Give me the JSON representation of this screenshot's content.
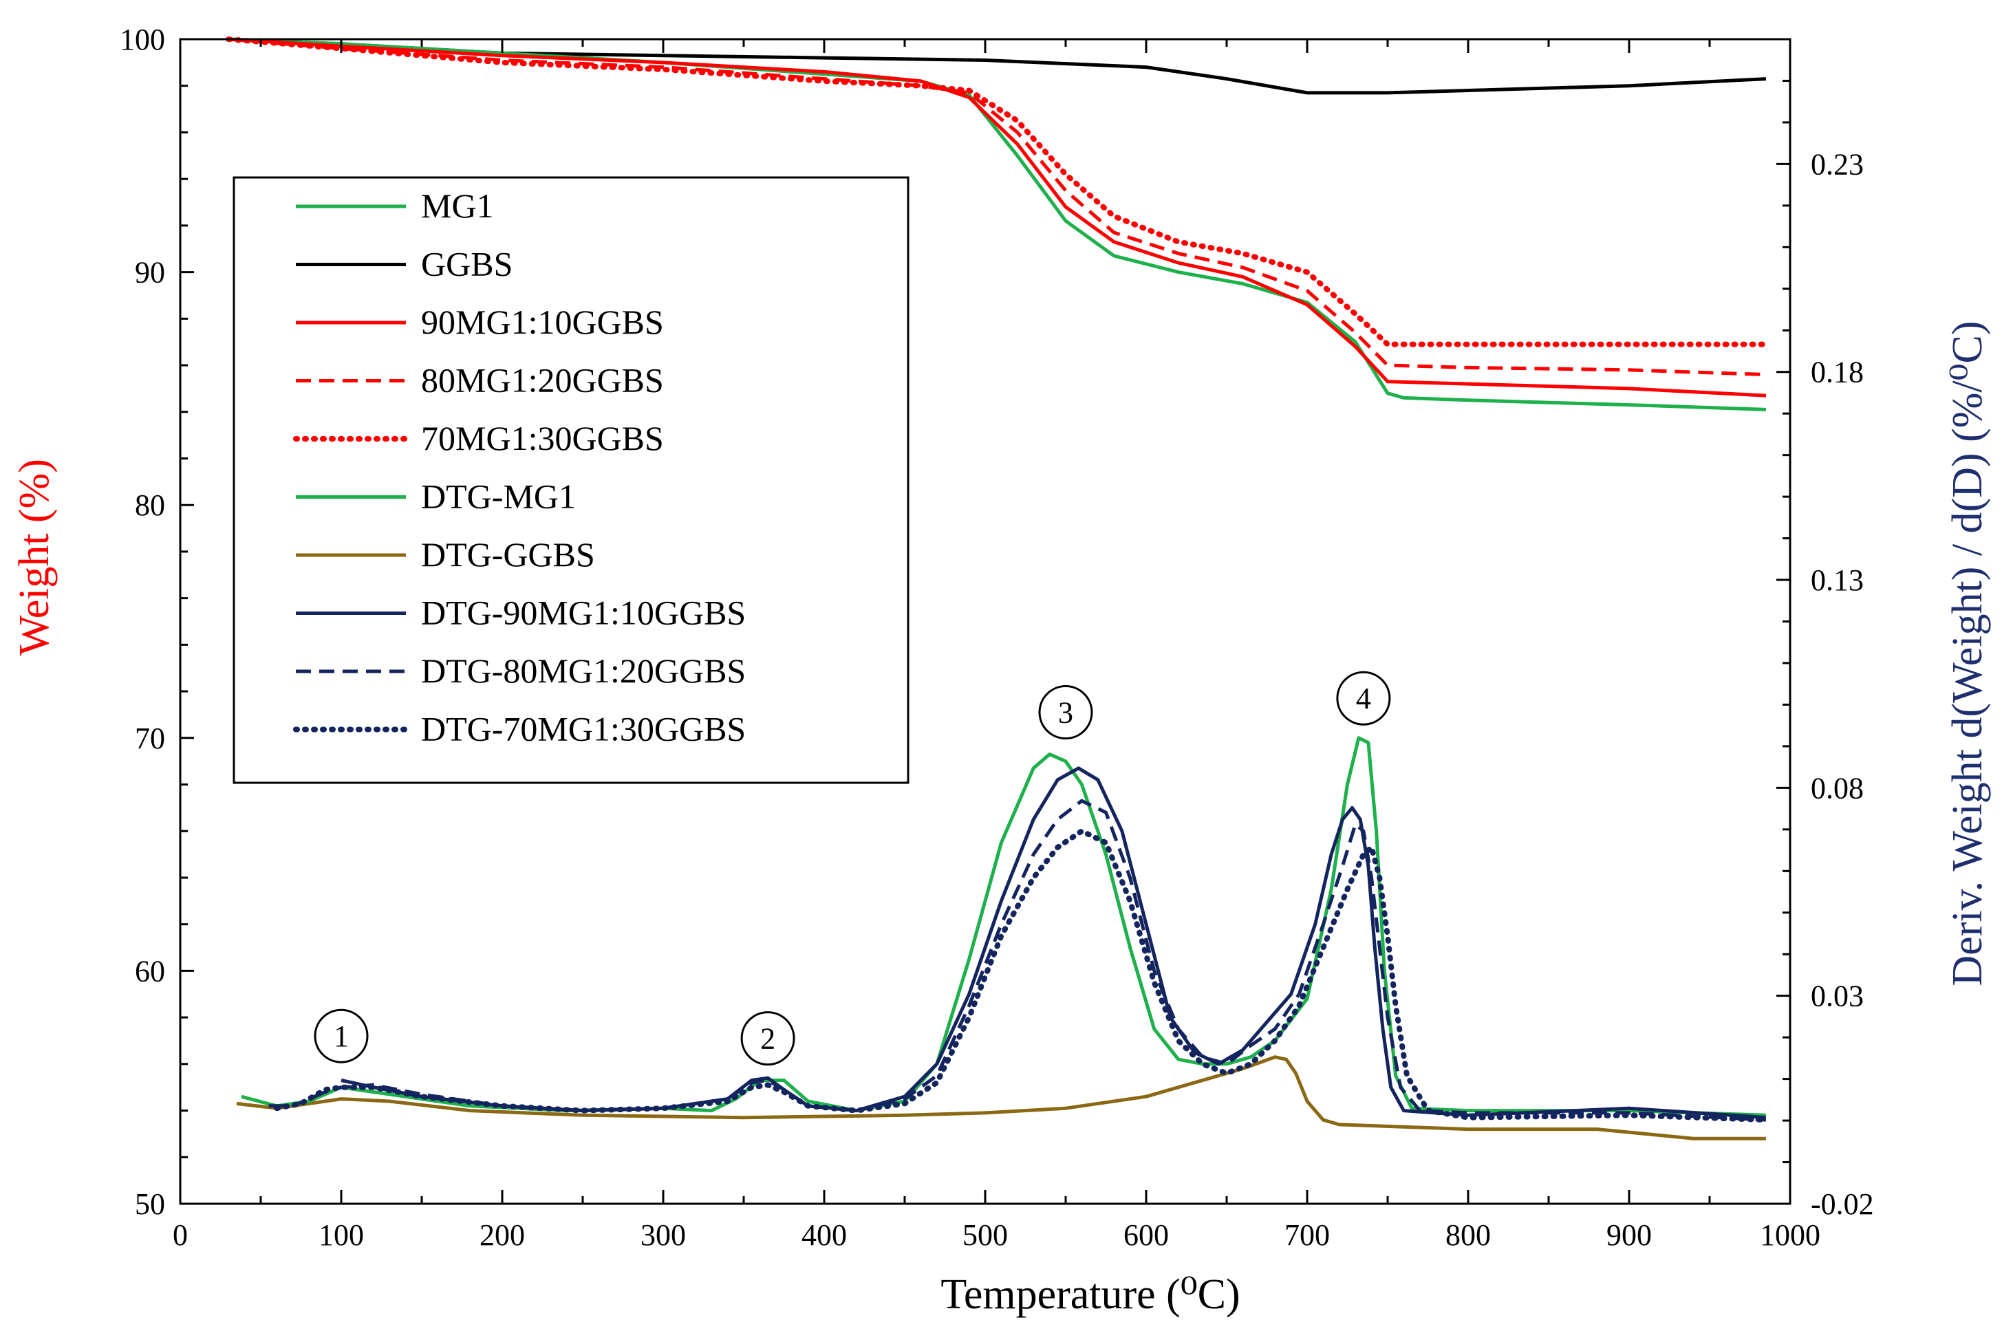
{
  "chart_data": {
    "type": "line",
    "title": "",
    "xlabel": "Temperature (⁰C)",
    "ylabel_left": "Weight (%)",
    "ylabel_right": "Deriv. Weight d(Weight) / d(D) (%/⁰C)",
    "xlim": [
      0,
      1000
    ],
    "ylim_left": [
      50,
      100
    ],
    "ylim_right": [
      -0.02,
      0.26
    ],
    "x_ticks": [
      0,
      100,
      200,
      300,
      400,
      500,
      600,
      700,
      800,
      900,
      1000
    ],
    "y_left_ticks": [
      50,
      60,
      70,
      80,
      90,
      100
    ],
    "y_right_ticks": [
      -0.02,
      0.03,
      0.08,
      0.13,
      0.18,
      0.23
    ],
    "y_right_tick_labels": [
      "-0.02",
      "0.03",
      "0.08",
      "0.13",
      "0.18",
      "0.23"
    ],
    "grid": false,
    "legend_position": "upper-left",
    "colors": {
      "left_axis_label": "#ff0000",
      "right_axis_label": "#1f2f6e",
      "green": "#1db04b",
      "black": "#000000",
      "red": "#ff0000",
      "brown": "#8b6914",
      "navy": "#14245e"
    },
    "annotations": [
      {
        "label": "1",
        "x": 100,
        "y": 57.2
      },
      {
        "label": "2",
        "x": 365,
        "y": 57.1
      },
      {
        "label": "3",
        "x": 550,
        "y": 71.1
      },
      {
        "label": "4",
        "x": 735,
        "y": 71.7
      }
    ],
    "series": [
      {
        "name": "MG1",
        "axis": "left",
        "color": "#1db04b",
        "dash": "solid",
        "x": [
          30,
          100,
          200,
          300,
          400,
          460,
          490,
          520,
          550,
          580,
          620,
          660,
          700,
          730,
          750,
          760,
          800,
          900,
          985
        ],
        "y": [
          100,
          99.8,
          99.4,
          99.0,
          98.5,
          98.2,
          97.6,
          95.0,
          92.2,
          90.7,
          90.0,
          89.5,
          88.7,
          87.0,
          84.8,
          84.6,
          84.5,
          84.3,
          84.1
        ]
      },
      {
        "name": "GGBS",
        "axis": "left",
        "color": "#000000",
        "dash": "solid",
        "x": [
          30,
          100,
          200,
          400,
          500,
          600,
          650,
          700,
          750,
          800,
          900,
          985
        ],
        "y": [
          100,
          99.8,
          99.4,
          99.2,
          99.1,
          98.8,
          98.3,
          97.7,
          97.7,
          97.8,
          98.0,
          98.3
        ]
      },
      {
        "name": "90MG1:10GGBS",
        "axis": "left",
        "color": "#ff0000",
        "dash": "solid",
        "x": [
          30,
          100,
          200,
          300,
          400,
          460,
          490,
          520,
          550,
          580,
          620,
          660,
          700,
          730,
          750,
          800,
          900,
          985
        ],
        "y": [
          100,
          99.7,
          99.3,
          99.0,
          98.6,
          98.2,
          97.5,
          95.5,
          92.8,
          91.3,
          90.4,
          89.8,
          88.6,
          86.8,
          85.3,
          85.2,
          85.0,
          84.7
        ]
      },
      {
        "name": "80MG1:20GGBS",
        "axis": "left",
        "color": "#ff0000",
        "dash": "dashed",
        "x": [
          30,
          100,
          200,
          300,
          400,
          460,
          490,
          520,
          550,
          580,
          620,
          660,
          700,
          730,
          750,
          800,
          900,
          985
        ],
        "y": [
          100,
          99.6,
          99.1,
          98.8,
          98.3,
          98.0,
          97.7,
          96.0,
          93.5,
          91.7,
          90.8,
          90.2,
          89.2,
          87.4,
          86.0,
          85.9,
          85.8,
          85.6
        ]
      },
      {
        "name": "70MG1:30GGBS",
        "axis": "left",
        "color": "#ff0000",
        "dash": "dotted",
        "x": [
          30,
          100,
          200,
          300,
          400,
          460,
          490,
          520,
          550,
          580,
          620,
          660,
          700,
          730,
          750,
          800,
          900,
          985
        ],
        "y": [
          100,
          99.6,
          99.0,
          98.7,
          98.2,
          98.0,
          97.8,
          96.5,
          94.2,
          92.4,
          91.3,
          90.8,
          90.0,
          88.2,
          86.9,
          86.9,
          86.9,
          86.9
        ]
      },
      {
        "name": "DTG-MG1",
        "axis": "left",
        "color": "#1db04b",
        "dash": "solid",
        "x": [
          38,
          60,
          80,
          100,
          130,
          180,
          240,
          300,
          330,
          345,
          360,
          375,
          390,
          420,
          450,
          470,
          490,
          510,
          530,
          540,
          550,
          560,
          575,
          590,
          605,
          620,
          635,
          650,
          665,
          680,
          700,
          715,
          725,
          732,
          738,
          743,
          748,
          755,
          765,
          800,
          900,
          985
        ],
        "y": [
          54.6,
          54.2,
          54.4,
          55.0,
          54.7,
          54.2,
          54.0,
          54.1,
          54.0,
          54.5,
          55.3,
          55.3,
          54.4,
          54.0,
          54.4,
          56.0,
          60.5,
          65.5,
          68.7,
          69.3,
          69.0,
          68.0,
          65.0,
          61.0,
          57.5,
          56.2,
          56.0,
          56.0,
          56.3,
          57.0,
          58.8,
          63.5,
          68.0,
          70.0,
          69.8,
          66.0,
          60.0,
          55.5,
          54.1,
          54.0,
          54.0,
          53.8
        ]
      },
      {
        "name": "DTG-GGBS",
        "axis": "left",
        "color": "#8b6914",
        "dash": "solid",
        "x": [
          35,
          60,
          80,
          100,
          130,
          180,
          250,
          350,
          450,
          500,
          550,
          600,
          620,
          640,
          660,
          672,
          680,
          687,
          693,
          700,
          710,
          720,
          760,
          800,
          880,
          910,
          940,
          985
        ],
        "y": [
          54.3,
          54.1,
          54.3,
          54.5,
          54.4,
          54.0,
          53.8,
          53.7,
          53.8,
          53.9,
          54.1,
          54.6,
          55.0,
          55.4,
          55.8,
          56.1,
          56.3,
          56.2,
          55.6,
          54.4,
          53.6,
          53.4,
          53.3,
          53.2,
          53.2,
          53.0,
          52.8,
          52.8
        ]
      },
      {
        "name": "DTG-90MG1:10GGBS",
        "axis": "left",
        "color": "#14245e",
        "dash": "solid",
        "x": [
          100,
          120,
          150,
          200,
          250,
          300,
          340,
          355,
          365,
          375,
          390,
          420,
          450,
          470,
          490,
          510,
          530,
          545,
          558,
          570,
          585,
          600,
          615,
          630,
          645,
          660,
          675,
          690,
          705,
          715,
          722,
          728,
          733,
          738,
          742,
          747,
          752,
          760,
          800,
          900,
          985
        ],
        "y": [
          55.3,
          55.0,
          54.6,
          54.2,
          54.0,
          54.1,
          54.5,
          55.3,
          55.4,
          54.9,
          54.2,
          54.0,
          54.6,
          56.0,
          59.0,
          63.0,
          66.5,
          68.2,
          68.7,
          68.2,
          66.0,
          62.0,
          58.0,
          56.5,
          56.0,
          56.6,
          57.8,
          59.0,
          62.0,
          65.0,
          66.5,
          67.0,
          66.5,
          64.5,
          61.0,
          57.5,
          55.0,
          54.0,
          53.8,
          54.1,
          53.7
        ]
      },
      {
        "name": "DTG-80MG1:20GGBS",
        "axis": "left",
        "color": "#14245e",
        "dash": "dashed",
        "x": [
          55,
          70,
          90,
          100,
          120,
          150,
          200,
          250,
          300,
          340,
          355,
          365,
          375,
          390,
          420,
          450,
          470,
          490,
          510,
          530,
          545,
          560,
          575,
          590,
          605,
          620,
          635,
          650,
          665,
          680,
          695,
          710,
          722,
          730,
          735,
          740,
          745,
          750,
          758,
          770,
          800,
          900,
          985
        ],
        "y": [
          54.2,
          54.2,
          54.8,
          55.0,
          55.1,
          54.7,
          54.2,
          54.0,
          54.1,
          54.5,
          55.2,
          55.3,
          54.9,
          54.2,
          54.0,
          54.5,
          55.5,
          58.5,
          62.0,
          65.0,
          66.5,
          67.3,
          66.8,
          64.0,
          60.0,
          57.5,
          56.3,
          56.0,
          56.8,
          57.5,
          59.0,
          62.0,
          64.5,
          66.3,
          66.0,
          64.0,
          61.0,
          58.0,
          55.0,
          54.0,
          53.9,
          53.9,
          53.6
        ]
      },
      {
        "name": "DTG-70MG1:30GGBS",
        "axis": "left",
        "color": "#14245e",
        "dash": "dotted",
        "x": [
          60,
          75,
          90,
          100,
          120,
          150,
          200,
          250,
          300,
          340,
          355,
          365,
          375,
          390,
          420,
          450,
          470,
          490,
          510,
          530,
          545,
          560,
          575,
          590,
          605,
          620,
          635,
          650,
          665,
          680,
          695,
          710,
          725,
          735,
          740,
          745,
          750,
          755,
          762,
          775,
          800,
          900,
          985
        ],
        "y": [
          54.1,
          54.3,
          54.9,
          55.0,
          55.0,
          54.6,
          54.2,
          54.0,
          54.1,
          54.4,
          55.0,
          55.1,
          54.8,
          54.2,
          54.0,
          54.3,
          55.2,
          58.0,
          61.5,
          64.0,
          65.3,
          66.0,
          65.5,
          63.0,
          59.5,
          57.0,
          56.0,
          55.6,
          56.0,
          57.0,
          58.5,
          61.0,
          63.5,
          65.0,
          65.3,
          64.0,
          61.5,
          58.5,
          55.5,
          54.0,
          53.7,
          53.8,
          53.6
        ]
      }
    ]
  }
}
